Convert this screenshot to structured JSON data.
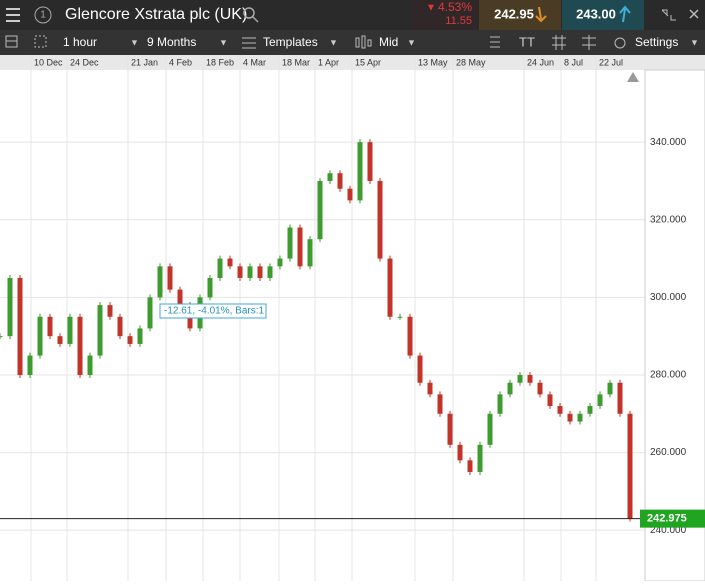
{
  "header": {
    "title": "Glencore Xstrata plc (UK)",
    "change_pct": "4.53%",
    "change": "11.55",
    "sell": "242.95",
    "buy": "243.00"
  },
  "toolbar": {
    "interval": "1 hour",
    "range": "9 Months",
    "templates": "Templates",
    "price_type": "Mid",
    "settings": "Settings"
  },
  "chart_data": {
    "type": "candlestick",
    "x": [
      0,
      2,
      4,
      6,
      8,
      10,
      12,
      14,
      16,
      18,
      20,
      22,
      24,
      26,
      28,
      30,
      32,
      34,
      36,
      38,
      40,
      42,
      44,
      46,
      48,
      50,
      52,
      54,
      56,
      58,
      60,
      62,
      64,
      66,
      68,
      70,
      72,
      74,
      76,
      78,
      80,
      82,
      84,
      86,
      88,
      90,
      92,
      94,
      96,
      98,
      100,
      102,
      104,
      106,
      108,
      110,
      112,
      114,
      116,
      118,
      120,
      122,
      124,
      126
    ],
    "values": [
      290,
      305,
      280,
      285,
      295,
      290,
      288,
      295,
      280,
      285,
      298,
      295,
      290,
      288,
      292,
      300,
      308,
      302,
      298,
      292,
      300,
      305,
      310,
      308,
      305,
      308,
      305,
      308,
      310,
      318,
      308,
      315,
      330,
      332,
      328,
      325,
      340,
      330,
      310,
      295,
      295,
      285,
      278,
      275,
      270,
      262,
      258,
      255,
      262,
      270,
      275,
      278,
      280,
      278,
      275,
      272,
      270,
      268,
      270,
      272,
      275,
      278,
      270,
      243
    ],
    "up_color": "#3d9b2f",
    "down_color": "#c2342a",
    "xlim": [
      0,
      129
    ],
    "xticks": [
      {
        "value": 6.2,
        "label": "10 Dec"
      },
      {
        "value": 13.4,
        "label": "24 Dec"
      },
      {
        "value": 25.6,
        "label": "21 Jan"
      },
      {
        "value": 33.2,
        "label": "4 Feb"
      },
      {
        "value": 40.6,
        "label": "18 Feb"
      },
      {
        "value": 48,
        "label": "4 Mar"
      },
      {
        "value": 55.8,
        "label": "18 Mar"
      },
      {
        "value": 63,
        "label": "1 Apr"
      },
      {
        "value": 70.4,
        "label": "15 Apr"
      },
      {
        "value": 83,
        "label": "13 May"
      },
      {
        "value": 90.6,
        "label": "28 May"
      },
      {
        "value": 104.8,
        "label": "24 Jun"
      },
      {
        "value": 112.2,
        "label": "8 Jul"
      },
      {
        "value": 119.2,
        "label": "22 Jul"
      }
    ],
    "ylim": [
      226.9,
      358.6
    ],
    "yticks": [
      {
        "value": 240,
        "label": "240.000"
      },
      {
        "value": 260,
        "label": "260.000"
      },
      {
        "value": 280,
        "label": "280.000"
      },
      {
        "value": 300,
        "label": "300.000"
      },
      {
        "value": 320,
        "label": "320.000"
      },
      {
        "value": 340,
        "label": "340.000"
      }
    ],
    "grid": true,
    "current_price": 242.975,
    "annotation": "-12.61, -4.01%, Bars:1"
  }
}
